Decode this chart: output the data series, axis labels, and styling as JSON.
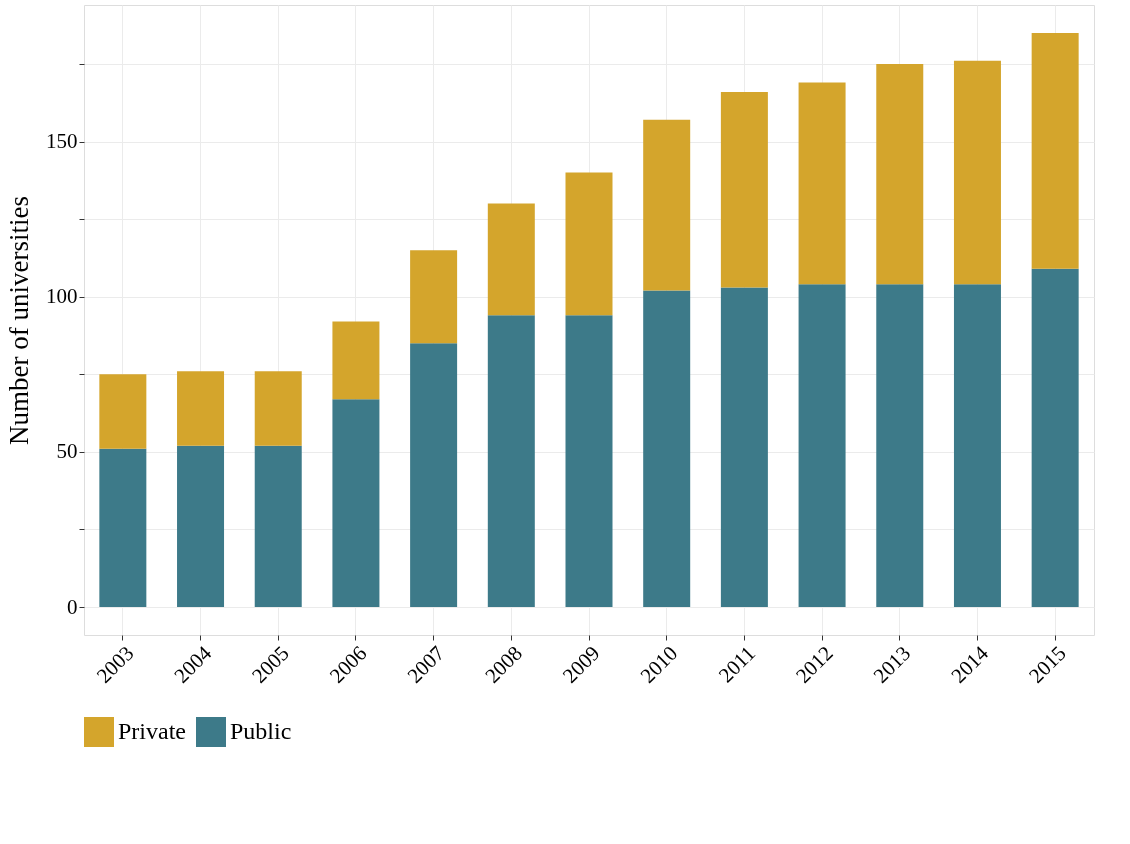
{
  "chart_data": {
    "type": "bar",
    "stacked": true,
    "ylabel": "Number of universities",
    "categories": [
      "2003",
      "2004",
      "2005",
      "2006",
      "2007",
      "2008",
      "2009",
      "2010",
      "2011",
      "2012",
      "2013",
      "2014",
      "2015"
    ],
    "series": [
      {
        "name": "Public",
        "color": "#3d7a89",
        "values": [
          51,
          52,
          52,
          67,
          85,
          94,
          94,
          102,
          103,
          104,
          104,
          104,
          109
        ]
      },
      {
        "name": "Private",
        "color": "#d4a52c",
        "values": [
          24,
          24,
          24,
          25,
          30,
          36,
          46,
          55,
          63,
          65,
          71,
          72,
          76
        ]
      }
    ],
    "ylim": [
      -9,
      194
    ],
    "yticks": [
      0,
      {
        "value": 25,
        "label": null
      },
      50,
      {
        "value": 75,
        "label": null
      },
      100,
      {
        "value": 125,
        "label": null
      },
      150,
      {
        "value": 175,
        "label": null
      }
    ],
    "grid": true,
    "legend": "bottom"
  }
}
